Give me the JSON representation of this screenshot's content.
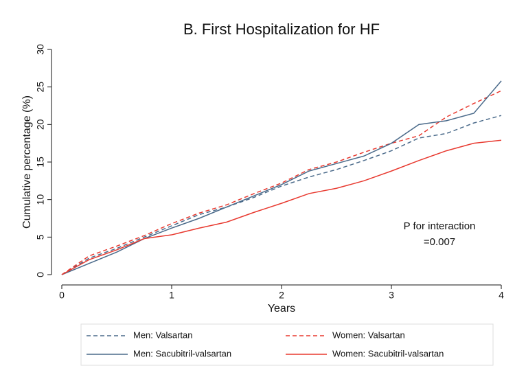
{
  "chart_data": {
    "type": "line",
    "title": "B. First Hospitalization for HF",
    "xlabel": "Years",
    "ylabel": "Cumulative percentage (%)",
    "annotation": [
      "P for interaction",
      "=0.007"
    ],
    "x": [
      0,
      0.25,
      0.5,
      0.75,
      1,
      1.25,
      1.5,
      1.75,
      2,
      2.25,
      2.5,
      2.75,
      3,
      3.25,
      3.5,
      3.75,
      4
    ],
    "xlim": [
      0,
      4
    ],
    "xticks": [
      0,
      1,
      2,
      3,
      4
    ],
    "ylim": [
      0,
      30
    ],
    "yticks": [
      0,
      5,
      10,
      15,
      20,
      25,
      30
    ],
    "series": [
      {
        "name": "Men: Valsartan",
        "color": "#4a6a8a",
        "dash": true,
        "values": [
          0,
          2.2,
          3.5,
          5,
          6.5,
          8,
          9,
          10.3,
          11.8,
          13,
          14,
          15.2,
          16.5,
          18.2,
          18.8,
          20.2,
          21.2
        ]
      },
      {
        "name": "Women: Valsartan",
        "color": "#e8392f",
        "dash": true,
        "values": [
          0,
          2.5,
          3.8,
          5.2,
          6.8,
          8.2,
          9.3,
          10.8,
          12.2,
          14,
          15,
          16.3,
          17.5,
          18.5,
          21,
          22.8,
          24.5
        ]
      },
      {
        "name": "Men: Sacubitril-valsartan",
        "color": "#4a6a8a",
        "dash": false,
        "values": [
          0,
          1.5,
          3,
          4.8,
          6.2,
          7.5,
          9,
          10.5,
          12,
          13.8,
          14.8,
          15.8,
          17.5,
          20,
          20.5,
          21.5,
          25.8
        ]
      },
      {
        "name": "Women: Sacubitril-valsartan",
        "color": "#e8392f",
        "dash": false,
        "values": [
          0,
          2,
          3.3,
          4.8,
          5.3,
          6.2,
          7,
          8.3,
          9.5,
          10.8,
          11.5,
          12.5,
          13.8,
          15.2,
          16.5,
          17.5,
          17.9
        ]
      }
    ]
  }
}
